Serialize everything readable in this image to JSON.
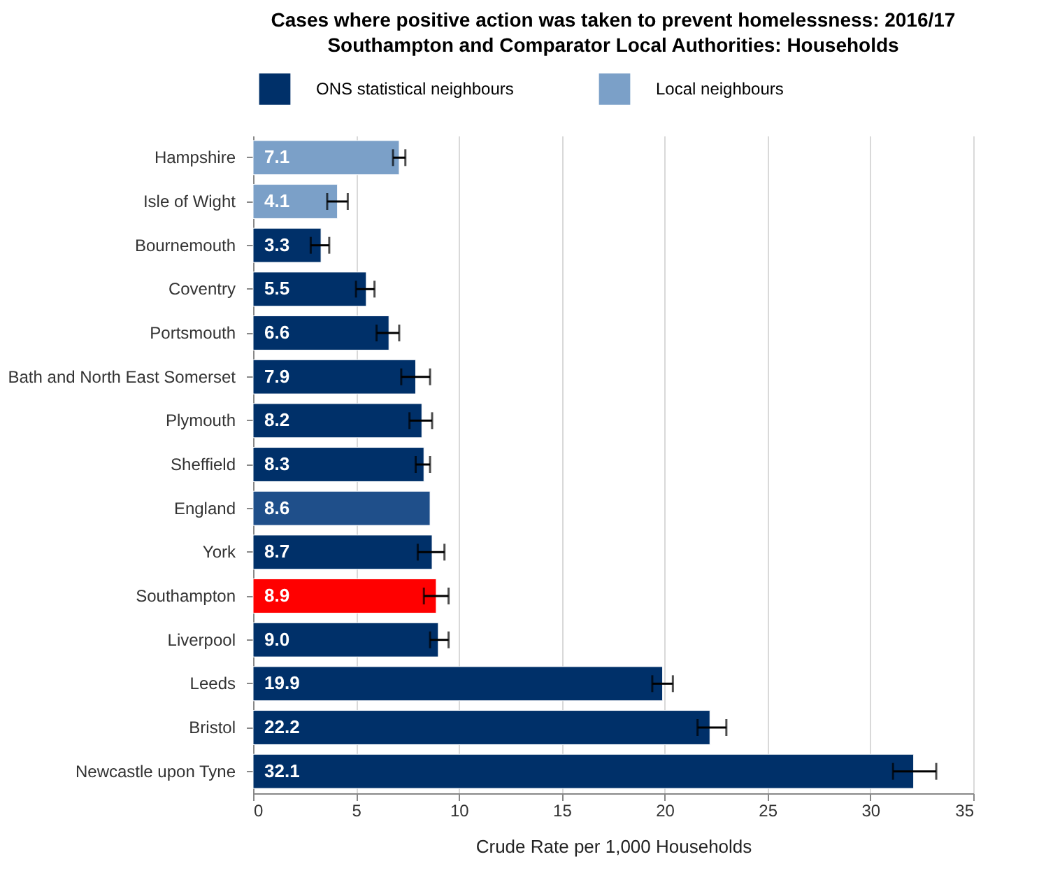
{
  "chart_data": {
    "type": "bar",
    "orientation": "horizontal",
    "title": "Cases where positive action was taken to prevent homelessness: 2016/17",
    "subtitle": "Southampton and Comparator Local Authorities: Households",
    "xlabel": "Crude Rate per 1,000 Households",
    "categories": [
      "Hampshire",
      "Isle of Wight",
      "Bournemouth",
      "Coventry",
      "Portsmouth",
      "Bath and North East Somerset",
      "Plymouth",
      "Sheffield",
      "England",
      "York",
      "Southampton",
      "Liverpool",
      "Leeds",
      "Bristol",
      "Newcastle upon Tyne"
    ],
    "series": [
      {
        "name": "ONS statistical neighbours",
        "color": "#003069",
        "values": [
          null,
          null,
          3.3,
          5.5,
          6.6,
          7.9,
          8.2,
          8.3,
          null,
          8.7,
          null,
          9.0,
          19.9,
          22.2,
          32.1
        ],
        "value_labels": [
          null,
          null,
          "3.3",
          "5.5",
          "6.6",
          "7.9",
          "8.2",
          "8.3",
          null,
          "8.7",
          null,
          "9.0",
          "19.9",
          "22.2",
          "32.1"
        ],
        "errors": [
          null,
          null,
          [
            2.8,
            3.7
          ],
          [
            5.0,
            5.9
          ],
          [
            6.0,
            7.1
          ],
          [
            7.2,
            8.6
          ],
          [
            7.6,
            8.7
          ],
          [
            7.9,
            8.6
          ],
          null,
          [
            8.0,
            9.3
          ],
          null,
          [
            8.6,
            9.5
          ],
          [
            19.4,
            20.4
          ],
          [
            21.6,
            23.0
          ],
          [
            31.1,
            33.2
          ]
        ]
      },
      {
        "name": "Local neighbours",
        "color": "#7ba0c8",
        "values": [
          7.1,
          4.1,
          null,
          null,
          null,
          null,
          null,
          null,
          null,
          null,
          null,
          null,
          null,
          null,
          null
        ],
        "value_labels": [
          "7.1",
          "4.1",
          null,
          null,
          null,
          null,
          null,
          null,
          null,
          null,
          null,
          null,
          null,
          null,
          null
        ],
        "errors": [
          [
            6.8,
            7.4
          ],
          [
            3.6,
            4.6
          ],
          null,
          null,
          null,
          null,
          null,
          null,
          null,
          null,
          null,
          null,
          null,
          null,
          null
        ]
      },
      {
        "color": "#ff0000",
        "values": [
          null,
          null,
          null,
          null,
          null,
          null,
          null,
          null,
          null,
          null,
          8.9,
          null,
          null,
          null,
          null
        ],
        "value_labels": [
          null,
          null,
          null,
          null,
          null,
          null,
          null,
          null,
          null,
          null,
          "8.9",
          null,
          null,
          null,
          null
        ],
        "errors": [
          null,
          null,
          null,
          null,
          null,
          null,
          null,
          null,
          null,
          null,
          [
            8.3,
            9.5
          ],
          null,
          null,
          null,
          null
        ]
      },
      {
        "color": "#1f4f8a",
        "values": [
          null,
          null,
          null,
          null,
          null,
          null,
          null,
          null,
          8.6,
          null,
          null,
          null,
          null,
          null,
          null
        ],
        "value_labels": [
          null,
          null,
          null,
          null,
          null,
          null,
          null,
          null,
          "8.6",
          null,
          null,
          null,
          null,
          null,
          null
        ]
      }
    ],
    "xlim": [
      0,
      35
    ],
    "xticks": [
      0,
      5,
      10,
      15,
      20,
      25,
      30,
      35
    ],
    "grid": "x",
    "legend": "top"
  }
}
